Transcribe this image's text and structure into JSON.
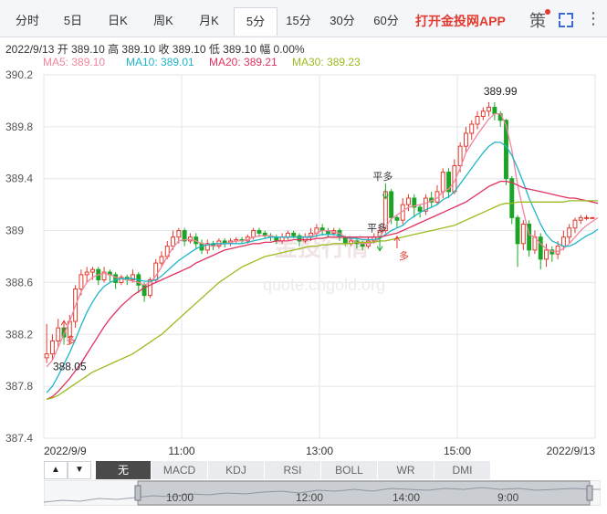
{
  "tabs": [
    {
      "label": "分时"
    },
    {
      "label": "5日"
    },
    {
      "label": "日K"
    },
    {
      "label": "周K"
    },
    {
      "label": "月K"
    },
    {
      "label": "5分"
    },
    {
      "label": "15分"
    },
    {
      "label": "30分"
    },
    {
      "label": "60分"
    }
  ],
  "active_tab": "5分",
  "app_button": "打开金投网APP",
  "strategy_label": "策",
  "info_line": "2022/9/13  开 389.10  高 389.10  收 389.10  低 389.10  幅 0.00%",
  "ma_legend": [
    {
      "label": "MA5: 389.10",
      "color": "#f1869f"
    },
    {
      "label": "MA10: 389.01",
      "color": "#1fb5c8"
    },
    {
      "label": "MA20: 389.21",
      "color": "#e0325f"
    },
    {
      "label": "MA30: 389.23",
      "color": "#9bbb1f"
    }
  ],
  "watermark": {
    "cn": "金投行情",
    "url": "quote.cngold.org"
  },
  "indicators": [
    "无",
    "MACD",
    "KDJ",
    "RSI",
    "BOLL",
    "WR",
    "DMI"
  ],
  "active_indicator": "无",
  "nav_arrows": [
    "▲",
    "▼"
  ],
  "navigator_labels": [
    "10:00",
    "12:00",
    "14:00",
    "9:00"
  ],
  "colors": {
    "up": "#e23a2e",
    "down": "#1aa526",
    "grid": "#e3e6eb",
    "tab_bar": "#f4f6fa"
  },
  "chart_data": {
    "type": "candlestick",
    "ylim": [
      387.4,
      390.2
    ],
    "y_ticks": [
      387.4,
      387.8,
      388.2,
      388.6,
      389,
      389.4,
      389.8,
      390.2
    ],
    "y_tick_labels": [
      "387.4",
      "387.8",
      "388.2",
      "388.6",
      "389",
      "389.4",
      "389.8",
      "390.2"
    ],
    "x_tick_labels": [
      "2022/9/9",
      "11:00",
      "13:00",
      "15:00",
      "2022/9/13"
    ],
    "x_tick_bars": [
      0,
      24,
      48,
      72,
      96
    ],
    "annotations": [
      {
        "text": "389.99",
        "bar": 79,
        "value": 389.99
      },
      {
        "text": "388.05",
        "bar": 4,
        "value": 388.05
      },
      {
        "text": "多",
        "bar": 3,
        "value": 388.2,
        "color": "#e23a2e",
        "kind": "buy"
      },
      {
        "text": "平多",
        "bar": 59,
        "value": 389.35,
        "color": "#333333",
        "kind": "close"
      },
      {
        "text": "平多",
        "bar": 58,
        "value": 388.95,
        "color": "#333333",
        "kind": "close"
      },
      {
        "text": "多",
        "bar": 61,
        "value": 388.85,
        "color": "#e23a2e",
        "kind": "buy"
      }
    ],
    "candles": [
      [
        388.02,
        388.05,
        388.28,
        387.98
      ],
      [
        388.05,
        388.15,
        388.2,
        388.0
      ],
      [
        388.15,
        388.25,
        388.32,
        388.1
      ],
      [
        388.25,
        388.18,
        388.3,
        388.12
      ],
      [
        388.18,
        388.3,
        388.35,
        388.12
      ],
      [
        388.3,
        388.55,
        388.58,
        388.25
      ],
      [
        388.55,
        388.66,
        388.7,
        388.5
      ],
      [
        388.66,
        388.68,
        388.72,
        388.6
      ],
      [
        388.68,
        388.7,
        388.72,
        388.62
      ],
      [
        388.7,
        388.62,
        388.72,
        388.58
      ],
      [
        388.62,
        388.68,
        388.72,
        388.6
      ],
      [
        388.68,
        388.66,
        388.7,
        388.6
      ],
      [
        388.66,
        388.6,
        388.68,
        388.55
      ],
      [
        388.6,
        388.64,
        388.66,
        388.58
      ],
      [
        388.64,
        388.62,
        388.66,
        388.58
      ],
      [
        388.62,
        388.66,
        388.7,
        388.6
      ],
      [
        388.66,
        388.58,
        388.68,
        388.52
      ],
      [
        388.58,
        388.5,
        388.6,
        388.45
      ],
      [
        388.5,
        388.62,
        388.64,
        388.48
      ],
      [
        388.62,
        388.75,
        388.78,
        388.6
      ],
      [
        388.75,
        388.8,
        388.84,
        388.72
      ],
      [
        388.8,
        388.88,
        388.92,
        388.78
      ],
      [
        388.88,
        388.95,
        389.0,
        388.85
      ],
      [
        388.95,
        389.0,
        389.02,
        388.9
      ],
      [
        389.0,
        388.92,
        389.02,
        388.88
      ],
      [
        388.92,
        388.95,
        388.98,
        388.9
      ],
      [
        388.95,
        388.9,
        388.98,
        388.86
      ],
      [
        388.9,
        388.85,
        388.93,
        388.82
      ],
      [
        388.85,
        388.9,
        388.93,
        388.82
      ],
      [
        388.9,
        388.88,
        388.92,
        388.85
      ],
      [
        388.88,
        388.92,
        388.94,
        388.86
      ],
      [
        388.92,
        388.9,
        388.94,
        388.87
      ],
      [
        388.9,
        388.92,
        388.94,
        388.88
      ],
      [
        388.92,
        388.93,
        388.95,
        388.9
      ],
      [
        388.93,
        388.92,
        388.95,
        388.9
      ],
      [
        388.92,
        388.95,
        388.97,
        388.9
      ],
      [
        388.95,
        389.0,
        389.02,
        388.93
      ],
      [
        389.0,
        388.98,
        389.02,
        388.95
      ],
      [
        388.98,
        388.96,
        389.0,
        388.94
      ],
      [
        388.96,
        388.95,
        388.98,
        388.92
      ],
      [
        388.95,
        388.92,
        388.97,
        388.9
      ],
      [
        388.92,
        388.95,
        388.98,
        388.9
      ],
      [
        388.95,
        388.98,
        389.0,
        388.93
      ],
      [
        388.98,
        388.96,
        389.0,
        388.94
      ],
      [
        388.96,
        388.92,
        388.98,
        388.88
      ],
      [
        388.92,
        388.95,
        388.98,
        388.9
      ],
      [
        388.95,
        388.98,
        389.02,
        388.92
      ],
      [
        388.98,
        389.02,
        389.05,
        388.95
      ],
      [
        389.02,
        389.0,
        389.05,
        388.96
      ],
      [
        389.0,
        388.98,
        389.02,
        388.95
      ],
      [
        388.98,
        389.0,
        389.02,
        388.96
      ],
      [
        389.0,
        388.95,
        389.02,
        388.92
      ],
      [
        388.95,
        388.9,
        388.96,
        388.88
      ],
      [
        388.9,
        388.92,
        388.95,
        388.88
      ],
      [
        388.92,
        388.9,
        388.94,
        388.86
      ],
      [
        388.9,
        388.88,
        388.92,
        388.85
      ],
      [
        388.88,
        388.92,
        388.95,
        388.86
      ],
      [
        388.92,
        388.95,
        388.98,
        388.9
      ],
      [
        388.95,
        389.0,
        389.05,
        388.93
      ],
      [
        389.0,
        389.3,
        389.32,
        388.98
      ],
      [
        389.3,
        389.1,
        389.32,
        389.05
      ],
      [
        389.1,
        389.08,
        389.12,
        389.02
      ],
      [
        389.08,
        389.2,
        389.25,
        389.05
      ],
      [
        389.2,
        389.25,
        389.28,
        389.15
      ],
      [
        389.25,
        389.18,
        389.28,
        389.1
      ],
      [
        389.18,
        389.15,
        389.2,
        389.1
      ],
      [
        389.15,
        389.25,
        389.28,
        389.12
      ],
      [
        389.25,
        389.22,
        389.3,
        389.18
      ],
      [
        389.22,
        389.3,
        389.35,
        389.2
      ],
      [
        389.3,
        389.45,
        389.48,
        389.25
      ],
      [
        389.45,
        389.3,
        389.48,
        389.25
      ],
      [
        389.3,
        389.5,
        389.55,
        389.28
      ],
      [
        389.5,
        389.65,
        389.68,
        389.45
      ],
      [
        389.65,
        389.75,
        389.8,
        389.6
      ],
      [
        389.75,
        389.82,
        389.85,
        389.7
      ],
      [
        389.82,
        389.88,
        389.92,
        389.78
      ],
      [
        389.88,
        389.92,
        389.95,
        389.85
      ],
      [
        389.92,
        389.95,
        389.99,
        389.88
      ],
      [
        389.95,
        389.9,
        389.99,
        389.85
      ],
      [
        389.9,
        389.85,
        389.92,
        389.8
      ],
      [
        389.85,
        389.4,
        389.86,
        389.35
      ],
      [
        389.4,
        389.1,
        389.42,
        389.05
      ],
      [
        389.1,
        388.9,
        389.12,
        388.72
      ],
      [
        388.9,
        389.05,
        389.08,
        388.85
      ],
      [
        389.05,
        388.85,
        389.08,
        388.8
      ],
      [
        388.85,
        388.95,
        389.0,
        388.82
      ],
      [
        388.95,
        388.78,
        388.98,
        388.7
      ],
      [
        388.78,
        388.85,
        388.9,
        388.72
      ],
      [
        388.85,
        388.82,
        388.88,
        388.76
      ],
      [
        388.82,
        388.88,
        388.92,
        388.78
      ],
      [
        388.88,
        388.95,
        389.0,
        388.85
      ],
      [
        388.95,
        389.02,
        389.05,
        388.9
      ],
      [
        389.02,
        389.08,
        389.1,
        388.98
      ],
      [
        389.08,
        389.1,
        389.12,
        389.05
      ],
      [
        389.1,
        389.1,
        389.12,
        389.08
      ],
      [
        389.1,
        389.1,
        389.1,
        389.1
      ]
    ],
    "series": [
      {
        "name": "MA5",
        "color": "#f1869f",
        "values": [
          387.95,
          388.0,
          388.1,
          388.2,
          388.3,
          388.42,
          388.53,
          388.6,
          388.64,
          388.66,
          388.67,
          388.66,
          388.64,
          388.63,
          388.62,
          388.61,
          388.6,
          388.58,
          388.6,
          388.65,
          388.72,
          388.8,
          388.87,
          388.92,
          388.93,
          388.93,
          388.92,
          388.9,
          388.89,
          388.88,
          388.89,
          388.9,
          388.91,
          388.92,
          388.92,
          388.93,
          388.95,
          388.96,
          388.96,
          388.96,
          388.95,
          388.95,
          388.95,
          388.95,
          388.95,
          388.95,
          388.96,
          388.98,
          389.0,
          389.0,
          388.99,
          388.98,
          388.95,
          388.93,
          388.91,
          388.9,
          388.9,
          388.91,
          388.94,
          389.03,
          389.09,
          389.12,
          389.15,
          389.18,
          389.19,
          389.2,
          389.21,
          389.23,
          389.25,
          389.3,
          389.32,
          389.38,
          389.48,
          389.6,
          389.67,
          389.74,
          389.8,
          389.86,
          389.9,
          389.9,
          389.81,
          389.62,
          389.35,
          389.15,
          388.97,
          388.95,
          388.9,
          388.86,
          388.84,
          388.84,
          388.86,
          388.9,
          388.95,
          389.0,
          389.04,
          389.07,
          389.1
        ]
      },
      {
        "name": "MA10",
        "color": "#1fb5c8",
        "values": [
          387.75,
          387.8,
          387.88,
          387.97,
          388.06,
          388.16,
          388.27,
          388.37,
          388.45,
          388.52,
          388.57,
          388.6,
          388.62,
          388.63,
          388.63,
          388.63,
          388.62,
          388.61,
          388.61,
          388.62,
          388.65,
          388.69,
          388.73,
          388.77,
          388.8,
          388.83,
          388.86,
          388.88,
          388.89,
          388.9,
          388.9,
          388.9,
          388.9,
          388.9,
          388.9,
          388.91,
          388.92,
          388.93,
          388.94,
          388.95,
          388.95,
          388.95,
          388.95,
          388.95,
          388.95,
          388.95,
          388.95,
          388.96,
          388.97,
          388.97,
          388.97,
          388.96,
          388.95,
          388.94,
          388.94,
          388.93,
          388.93,
          388.93,
          388.94,
          388.97,
          389.0,
          389.02,
          389.04,
          389.08,
          389.11,
          389.14,
          389.16,
          389.18,
          389.2,
          389.24,
          389.26,
          389.3,
          389.36,
          389.42,
          389.48,
          389.54,
          389.6,
          389.65,
          389.68,
          389.68,
          389.65,
          389.58,
          389.48,
          389.37,
          389.25,
          389.15,
          389.05,
          388.97,
          388.92,
          388.9,
          388.88,
          388.88,
          388.9,
          388.93,
          388.96,
          388.98,
          389.01
        ]
      },
      {
        "name": "MA20",
        "color": "#e0325f",
        "values": [
          387.7,
          387.72,
          387.76,
          387.81,
          387.86,
          387.92,
          387.98,
          388.05,
          388.12,
          388.19,
          388.26,
          388.32,
          388.37,
          388.42,
          388.46,
          388.5,
          388.53,
          388.56,
          388.58,
          388.6,
          388.62,
          388.64,
          388.66,
          388.68,
          388.7,
          388.72,
          388.75,
          388.77,
          388.79,
          388.81,
          388.83,
          388.85,
          388.86,
          388.87,
          388.88,
          388.89,
          388.9,
          388.9,
          388.91,
          388.91,
          388.92,
          388.92,
          388.92,
          388.93,
          388.93,
          388.93,
          388.93,
          388.94,
          388.94,
          388.95,
          388.95,
          388.95,
          388.95,
          388.95,
          388.95,
          388.95,
          388.95,
          388.95,
          388.95,
          388.96,
          388.97,
          388.98,
          389.0,
          389.02,
          389.04,
          389.06,
          389.08,
          389.1,
          389.12,
          389.14,
          389.16,
          389.18,
          389.2,
          389.22,
          389.25,
          389.28,
          389.31,
          389.34,
          389.36,
          389.38,
          389.38,
          389.37,
          389.35,
          389.33,
          389.32,
          389.31,
          389.3,
          389.29,
          389.28,
          389.27,
          389.26,
          389.25,
          389.25,
          389.24,
          389.23,
          389.22,
          389.21
        ]
      },
      {
        "name": "MA30",
        "color": "#9bbb1f",
        "values": [
          387.7,
          387.71,
          387.73,
          387.76,
          387.79,
          387.82,
          387.85,
          387.88,
          387.91,
          387.93,
          387.95,
          387.97,
          387.99,
          388.01,
          388.03,
          388.05,
          388.08,
          388.11,
          388.14,
          388.17,
          388.2,
          388.24,
          388.28,
          388.32,
          388.36,
          388.4,
          388.44,
          388.48,
          388.52,
          388.56,
          388.6,
          388.63,
          388.66,
          388.69,
          388.72,
          388.74,
          388.76,
          388.78,
          388.8,
          388.81,
          388.82,
          388.83,
          388.84,
          388.85,
          388.86,
          388.87,
          388.88,
          388.88,
          388.89,
          388.89,
          388.9,
          388.9,
          388.9,
          388.9,
          388.91,
          388.91,
          388.91,
          388.91,
          388.92,
          388.92,
          388.93,
          388.94,
          388.95,
          388.96,
          388.97,
          388.98,
          388.99,
          389.0,
          389.01,
          389.02,
          389.03,
          389.04,
          389.06,
          389.08,
          389.1,
          389.12,
          389.14,
          389.16,
          389.18,
          389.2,
          389.21,
          389.21,
          389.22,
          389.22,
          389.22,
          389.22,
          389.22,
          389.22,
          389.22,
          389.22,
          389.22,
          389.23,
          389.23,
          389.23,
          389.23,
          389.23,
          389.23
        ]
      }
    ]
  }
}
